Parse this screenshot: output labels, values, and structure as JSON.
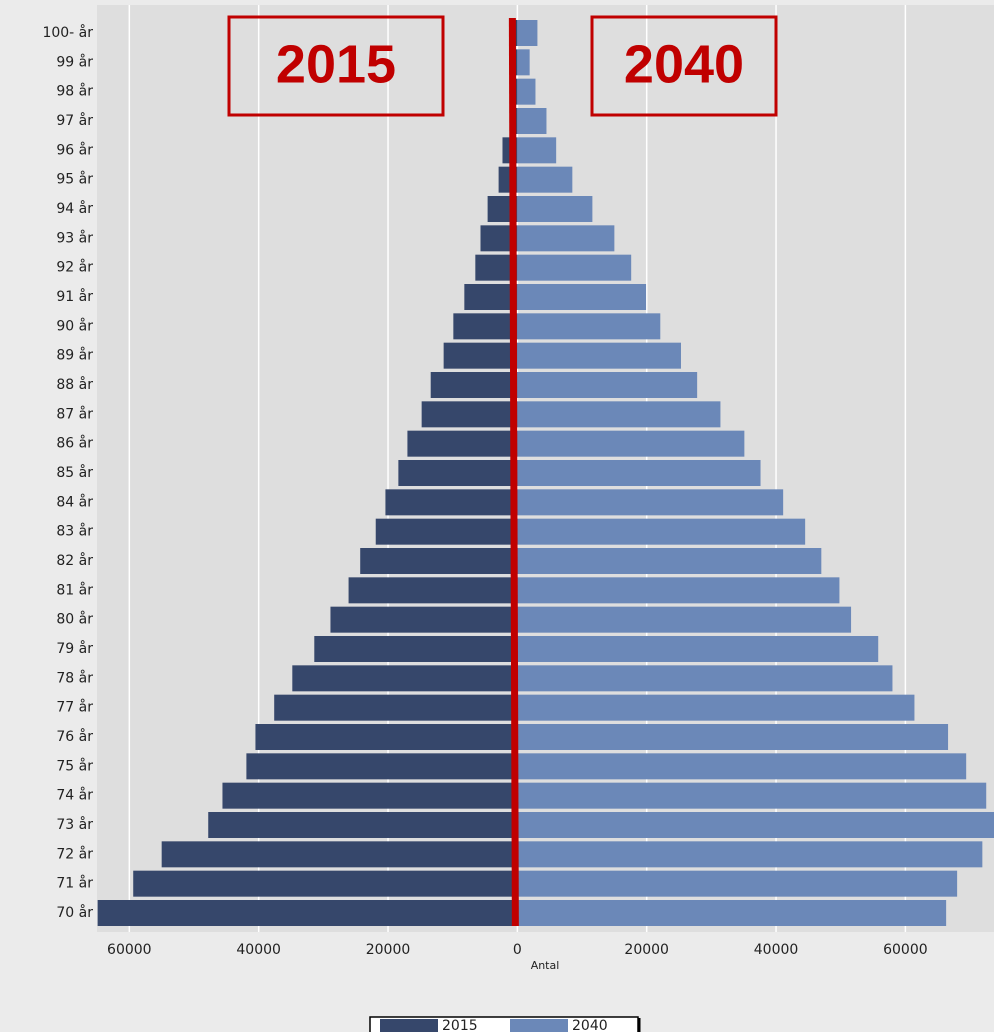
{
  "chart_data": {
    "type": "pyramid",
    "xlabel": "Antal",
    "annotations": [
      "2015",
      "2040"
    ],
    "categories": [
      "100- år",
      "99 år",
      "98 år",
      "97 år",
      "96 år",
      "95 år",
      "94 år",
      "93 år",
      "92 år",
      "91 år",
      "90 år",
      "89 år",
      "88 år",
      "87 år",
      "86 år",
      "85 år",
      "84 år",
      "83 år",
      "82 år",
      "81 år",
      "80 år",
      "79 år",
      "78 år",
      "77 år",
      "76 år",
      "75 år",
      "74 år",
      "73 år",
      "72 år",
      "71 år",
      "70 år"
    ],
    "series": [
      {
        "name": "2015",
        "color": "#36476b",
        "values": [
          -300,
          -300,
          -500,
          -700,
          -2300,
          -2900,
          -4600,
          -5700,
          -6500,
          -8200,
          -9900,
          -11400,
          -13400,
          -14800,
          -17000,
          -18400,
          -20400,
          -21900,
          -24300,
          -26100,
          -28900,
          -31400,
          -34800,
          -37600,
          -40500,
          -41900,
          -45600,
          -47800,
          -55000,
          -59400,
          -64900
        ]
      },
      {
        "name": "2040",
        "color": "#6b88b8",
        "values": [
          3100,
          1900,
          2800,
          4500,
          6000,
          8500,
          11600,
          15000,
          17600,
          19900,
          22100,
          25300,
          27800,
          31400,
          35100,
          37600,
          41100,
          44500,
          47000,
          49800,
          51600,
          55800,
          58000,
          61400,
          66600,
          69400,
          72500,
          74000,
          71900,
          68000,
          66300
        ]
      }
    ],
    "xlim": [
      -65000,
      74000
    ],
    "xticks": [
      {
        "value": -60000,
        "label": "60000"
      },
      {
        "value": -40000,
        "label": "40000"
      },
      {
        "value": -20000,
        "label": "20000"
      },
      0,
      20000,
      40000,
      60000
    ],
    "grid": true,
    "legend": "bottom"
  }
}
